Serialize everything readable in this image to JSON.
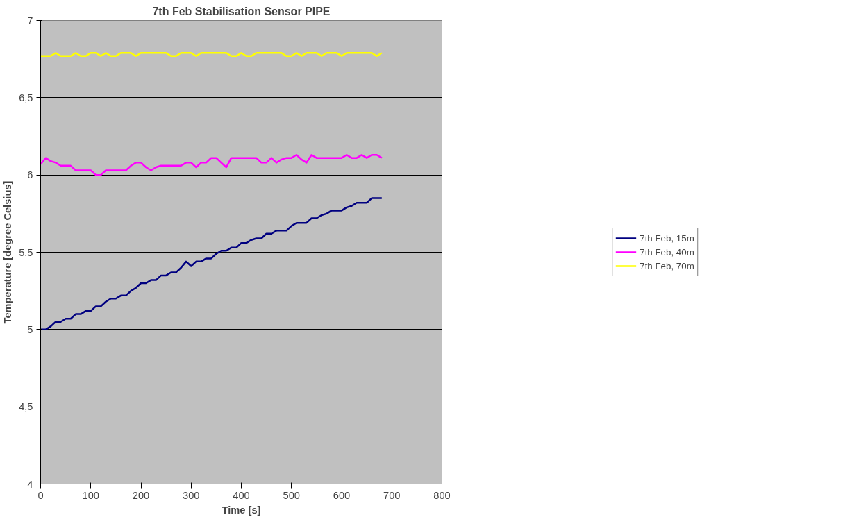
{
  "chart_data": {
    "type": "line",
    "title": "7th Feb Stabilisation Sensor PIPE",
    "xlabel": "Time [s]",
    "ylabel": "Temperature [degree Celsius]",
    "x": [
      0,
      10,
      20,
      30,
      40,
      50,
      60,
      70,
      80,
      90,
      100,
      110,
      120,
      130,
      140,
      150,
      160,
      170,
      180,
      190,
      200,
      210,
      220,
      230,
      240,
      250,
      260,
      270,
      280,
      290,
      300,
      310,
      320,
      330,
      340,
      350,
      360,
      370,
      380,
      390,
      400,
      410,
      420,
      430,
      440,
      450,
      460,
      470,
      480,
      490,
      500,
      510,
      520,
      530,
      540,
      550,
      560,
      570,
      580,
      590,
      600,
      610,
      620,
      630,
      640,
      650,
      660,
      670,
      680
    ],
    "series": [
      {
        "name": "7th Feb, 15m",
        "color": "#000080",
        "values": [
          5.0,
          5.0,
          5.02,
          5.05,
          5.05,
          5.07,
          5.07,
          5.1,
          5.1,
          5.12,
          5.12,
          5.15,
          5.15,
          5.18,
          5.2,
          5.2,
          5.22,
          5.22,
          5.25,
          5.27,
          5.3,
          5.3,
          5.32,
          5.32,
          5.35,
          5.35,
          5.37,
          5.37,
          5.4,
          5.44,
          5.41,
          5.44,
          5.44,
          5.46,
          5.46,
          5.49,
          5.51,
          5.51,
          5.53,
          5.53,
          5.56,
          5.56,
          5.58,
          5.59,
          5.59,
          5.62,
          5.62,
          5.64,
          5.64,
          5.64,
          5.67,
          5.69,
          5.69,
          5.69,
          5.72,
          5.72,
          5.74,
          5.75,
          5.77,
          5.77,
          5.77,
          5.79,
          5.8,
          5.82,
          5.82,
          5.82,
          5.85,
          5.85,
          5.85
        ]
      },
      {
        "name": "7th Feb, 40m",
        "color": "#ff00ff",
        "values": [
          6.07,
          6.11,
          6.09,
          6.08,
          6.06,
          6.06,
          6.06,
          6.03,
          6.03,
          6.03,
          6.03,
          6.0,
          6.0,
          6.03,
          6.03,
          6.03,
          6.03,
          6.03,
          6.06,
          6.08,
          6.08,
          6.05,
          6.03,
          6.05,
          6.06,
          6.06,
          6.06,
          6.06,
          6.06,
          6.08,
          6.08,
          6.05,
          6.08,
          6.08,
          6.11,
          6.11,
          6.08,
          6.05,
          6.11,
          6.11,
          6.11,
          6.11,
          6.11,
          6.11,
          6.08,
          6.08,
          6.11,
          6.08,
          6.1,
          6.11,
          6.11,
          6.13,
          6.1,
          6.08,
          6.13,
          6.11,
          6.11,
          6.11,
          6.11,
          6.11,
          6.11,
          6.13,
          6.11,
          6.11,
          6.13,
          6.11,
          6.13,
          6.13,
          6.11
        ]
      },
      {
        "name": "7th Feb, 70m",
        "color": "#ffff00",
        "values": [
          6.77,
          6.77,
          6.77,
          6.79,
          6.77,
          6.77,
          6.77,
          6.79,
          6.77,
          6.77,
          6.79,
          6.79,
          6.77,
          6.79,
          6.77,
          6.77,
          6.79,
          6.79,
          6.79,
          6.77,
          6.79,
          6.79,
          6.79,
          6.79,
          6.79,
          6.79,
          6.77,
          6.77,
          6.79,
          6.79,
          6.79,
          6.77,
          6.79,
          6.79,
          6.79,
          6.79,
          6.79,
          6.79,
          6.77,
          6.77,
          6.79,
          6.77,
          6.77,
          6.79,
          6.79,
          6.79,
          6.79,
          6.79,
          6.79,
          6.77,
          6.77,
          6.79,
          6.77,
          6.79,
          6.79,
          6.79,
          6.77,
          6.79,
          6.79,
          6.79,
          6.77,
          6.79,
          6.79,
          6.79,
          6.79,
          6.79,
          6.79,
          6.77,
          6.79
        ]
      }
    ],
    "xlim": [
      0,
      800
    ],
    "xticks": [
      0,
      100,
      200,
      300,
      400,
      500,
      600,
      700,
      800
    ],
    "ylim": [
      4,
      7
    ],
    "yticks": [
      4,
      {
        "value": 4.5,
        "label": "4,5"
      },
      5,
      {
        "value": 5.5,
        "label": "5,5"
      },
      6,
      {
        "value": 6.5,
        "label": "6,5"
      },
      7
    ],
    "grid": "y",
    "legend": "right",
    "marker": "none",
    "line_style": "solid"
  }
}
